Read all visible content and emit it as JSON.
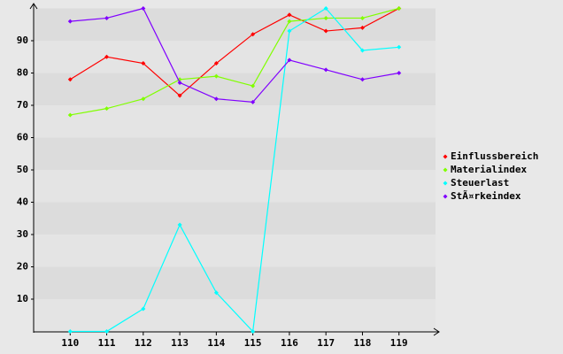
{
  "chart_data": {
    "type": "line",
    "categories": [
      "110",
      "111",
      "112",
      "113",
      "114",
      "115",
      "116",
      "117",
      "118",
      "119"
    ],
    "series": [
      {
        "name": "Einflussbereich",
        "color": "#ff0000",
        "values": [
          78,
          85,
          83,
          73,
          83,
          92,
          98,
          93,
          94,
          100
        ]
      },
      {
        "name": "Materialindex",
        "color": "#80ff00",
        "values": [
          67,
          69,
          72,
          78,
          79,
          76,
          96,
          97,
          97,
          100
        ]
      },
      {
        "name": "Steuerlast",
        "color": "#00ffff",
        "values": [
          0,
          0,
          7,
          33,
          12,
          0,
          93,
          100,
          87,
          88
        ]
      },
      {
        "name": "StÃ¤rkeindex",
        "color": "#8000ff",
        "values": [
          96,
          97,
          100,
          77,
          72,
          71,
          84,
          81,
          78,
          80
        ]
      }
    ],
    "ylim": [
      0,
      100
    ],
    "yticks": [
      10,
      20,
      30,
      40,
      50,
      60,
      70,
      80,
      90
    ],
    "grid": true,
    "legend": "right"
  }
}
